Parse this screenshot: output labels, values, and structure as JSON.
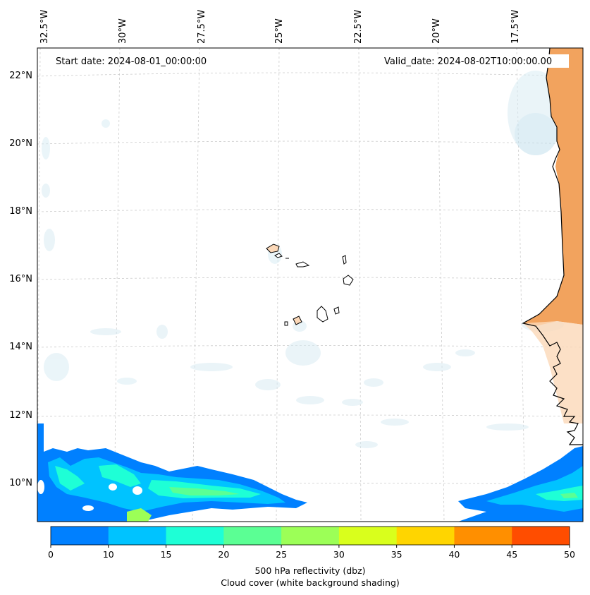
{
  "header": {
    "start_date": "Start date: 2024-08-01_00:00:00",
    "valid_date": "Valid_date: 2024-08-02T10:00:00.00"
  },
  "axes": {
    "lon_labels": [
      "32.5°W",
      "30°W",
      "27.5°W",
      "25°W",
      "22.5°W",
      "20°W",
      "17.5°W"
    ],
    "lat_labels": [
      "22°N",
      "20°N",
      "18°N",
      "16°N",
      "14°N",
      "12°N",
      "10°N"
    ]
  },
  "colorbar": {
    "ticks": [
      "0",
      "10",
      "15",
      "20",
      "25",
      "30",
      "35",
      "40",
      "45",
      "50"
    ],
    "colors": [
      "#0080ff",
      "#00c3ff",
      "#1effd6",
      "#5bff94",
      "#9cff57",
      "#d9ff1c",
      "#ffd500",
      "#ff8f00",
      "#ff4d00"
    ],
    "label_line1": "500 hPa reflectivity (dbz)",
    "label_line2": "Cloud cover (white background shading)"
  },
  "colors": {
    "land_orange": "#f2a35e",
    "cloud_blue": "#cfe6f0",
    "coastline": "#000000",
    "gridline": "#cccccc"
  }
}
